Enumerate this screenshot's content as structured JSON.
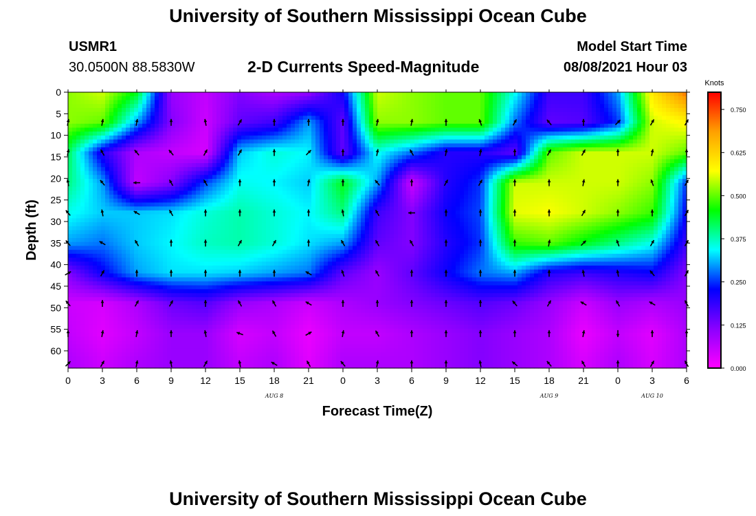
{
  "page": {
    "title": "University of Southern Mississippi Ocean Cube",
    "footer_title": "University of Southern Mississippi Ocean Cube",
    "station_id": "USMR1",
    "coordinates": "30.0500N  88.5830W",
    "subtitle": "2-D Currents Speed-Magnitude",
    "model_start_label": "Model Start Time",
    "model_start_value": "08/08/2021 Hour 03"
  },
  "chart_data": {
    "type": "heatmap",
    "title": "2-D Currents Speed-Magnitude",
    "xlabel": "Forecast Time(Z)",
    "ylabel": "Depth (ft)",
    "x_tick_labels": [
      "0",
      "3",
      "6",
      "9",
      "12",
      "15",
      "18",
      "21",
      "0",
      "3",
      "6",
      "9",
      "12",
      "15",
      "18",
      "21",
      "0",
      "3",
      "6"
    ],
    "date_labels": [
      {
        "text": "AUG 8",
        "tick_index": 6
      },
      {
        "text": "AUG 9",
        "tick_index": 14
      },
      {
        "text": "AUG 10",
        "tick_index": 17
      }
    ],
    "y_tick_labels": [
      "0",
      "5",
      "10",
      "15",
      "20",
      "25",
      "30",
      "35",
      "40",
      "45",
      "50",
      "55",
      "60"
    ],
    "ylim": [
      0,
      64
    ],
    "y_inverted": true,
    "colorbar": {
      "unit": "Knots",
      "range": [
        0,
        0.8
      ],
      "tick_labels": [
        "0.000",
        "0.125",
        "0.250",
        "0.375",
        "0.500",
        "0.625",
        "0.750"
      ],
      "tick_values": [
        0,
        0.125,
        0.25,
        0.375,
        0.5,
        0.625,
        0.75
      ],
      "colors": [
        "#ff00ff",
        "#8a00ff",
        "#0000ff",
        "#00ffff",
        "#00ff00",
        "#ffff00",
        "#ffa000",
        "#ff0000"
      ]
    },
    "grid_columns_hours": [
      0,
      3,
      6,
      9,
      12,
      15,
      18,
      21,
      24,
      27,
      30,
      33,
      36,
      39,
      42,
      45,
      48,
      51,
      54
    ],
    "grid_rows_depth_ft": [
      0,
      7,
      14,
      21,
      28,
      35,
      42,
      49,
      56,
      63
    ],
    "speed_knots": [
      [
        0.52,
        0.55,
        0.45,
        0.1,
        0.06,
        0.12,
        0.08,
        0.1,
        0.22,
        0.55,
        0.52,
        0.5,
        0.5,
        0.35,
        0.18,
        0.18,
        0.3,
        0.6,
        0.72
      ],
      [
        0.52,
        0.5,
        0.3,
        0.12,
        0.05,
        0.15,
        0.18,
        0.3,
        0.15,
        0.52,
        0.52,
        0.5,
        0.5,
        0.28,
        0.15,
        0.16,
        0.25,
        0.55,
        0.58
      ],
      [
        0.42,
        0.2,
        0.08,
        0.06,
        0.04,
        0.32,
        0.36,
        0.34,
        0.15,
        0.35,
        0.28,
        0.2,
        0.2,
        0.15,
        0.5,
        0.55,
        0.55,
        0.55,
        0.5
      ],
      [
        0.4,
        0.3,
        0.06,
        0.12,
        0.26,
        0.35,
        0.34,
        0.32,
        0.45,
        0.3,
        0.05,
        0.2,
        0.25,
        0.55,
        0.55,
        0.55,
        0.55,
        0.52,
        0.25
      ],
      [
        0.35,
        0.32,
        0.32,
        0.33,
        0.36,
        0.38,
        0.36,
        0.34,
        0.4,
        0.18,
        0.12,
        0.22,
        0.26,
        0.56,
        0.57,
        0.55,
        0.52,
        0.48,
        0.22
      ],
      [
        0.3,
        0.28,
        0.32,
        0.34,
        0.37,
        0.38,
        0.36,
        0.33,
        0.3,
        0.15,
        0.12,
        0.2,
        0.25,
        0.48,
        0.5,
        0.45,
        0.4,
        0.35,
        0.18
      ],
      [
        0.12,
        0.22,
        0.3,
        0.33,
        0.33,
        0.32,
        0.3,
        0.28,
        0.15,
        0.1,
        0.15,
        0.22,
        0.28,
        0.3,
        0.2,
        0.18,
        0.2,
        0.22,
        0.12
      ],
      [
        0.05,
        0.04,
        0.08,
        0.14,
        0.16,
        0.1,
        0.08,
        0.05,
        0.08,
        0.1,
        0.12,
        0.14,
        0.16,
        0.14,
        0.1,
        0.05,
        0.1,
        0.08,
        0.1
      ],
      [
        0.06,
        0.03,
        0.06,
        0.1,
        0.1,
        0.04,
        0.06,
        0.02,
        0.06,
        0.06,
        0.08,
        0.1,
        0.12,
        0.1,
        0.08,
        0.02,
        0.06,
        0.03,
        0.08
      ],
      [
        0.08,
        0.05,
        0.08,
        0.1,
        0.1,
        0.06,
        0.08,
        0.03,
        0.08,
        0.08,
        0.08,
        0.1,
        0.12,
        0.1,
        0.08,
        0.04,
        0.08,
        0.04,
        0.08
      ]
    ],
    "vector_rows_depth_ft": [
      7,
      14,
      21,
      28,
      35,
      42,
      49,
      56,
      63
    ],
    "vector_direction_deg": [
      [
        80,
        80,
        80,
        90,
        100,
        60,
        90,
        90,
        90,
        80,
        80,
        90,
        110,
        60,
        130,
        90,
        45,
        60,
        60
      ],
      [
        80,
        120,
        130,
        130,
        60,
        60,
        90,
        45,
        90,
        80,
        120,
        80,
        80,
        90,
        60,
        60,
        90,
        80,
        90
      ],
      [
        100,
        130,
        180,
        120,
        120,
        90,
        90,
        80,
        90,
        130,
        90,
        60,
        60,
        90,
        90,
        80,
        90,
        110,
        60
      ],
      [
        130,
        100,
        150,
        120,
        90,
        90,
        90,
        90,
        100,
        120,
        180,
        90,
        90,
        90,
        90,
        60,
        90,
        90,
        60
      ],
      [
        130,
        150,
        120,
        90,
        90,
        60,
        60,
        90,
        120,
        120,
        120,
        90,
        90,
        90,
        80,
        45,
        110,
        60,
        60
      ],
      [
        30,
        60,
        90,
        90,
        90,
        90,
        90,
        150,
        110,
        120,
        90,
        90,
        90,
        90,
        90,
        100,
        100,
        130,
        60
      ],
      [
        130,
        90,
        60,
        60,
        90,
        120,
        120,
        150,
        90,
        90,
        90,
        90,
        90,
        130,
        60,
        150,
        120,
        150,
        120
      ],
      [
        90,
        80,
        80,
        90,
        100,
        160,
        120,
        30,
        80,
        120,
        90,
        90,
        90,
        90,
        90,
        80,
        270,
        90,
        90
      ],
      [
        45,
        60,
        80,
        100,
        60,
        100,
        150,
        120,
        130,
        80,
        90,
        90,
        100,
        140,
        130,
        120,
        90,
        60,
        120
      ]
    ]
  }
}
